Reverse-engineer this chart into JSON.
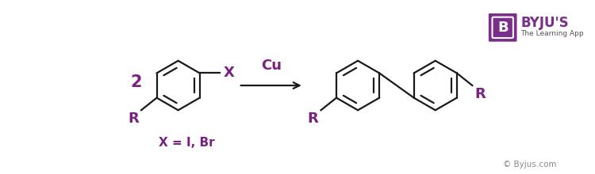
{
  "bg_color": "#ffffff",
  "purple_color": "#7B2080",
  "dark_color": "#1a1a1a",
  "byju_purple": "#7B2D8B",
  "footnote": "© Byjus.com",
  "reagent": "Cu",
  "label_2": "2",
  "label_X": "X",
  "label_R_left": "R",
  "label_R_right1": "R",
  "label_R_right2": "R",
  "label_Xeq": "X = I, Br",
  "ring_r": 32,
  "lw": 1.6
}
